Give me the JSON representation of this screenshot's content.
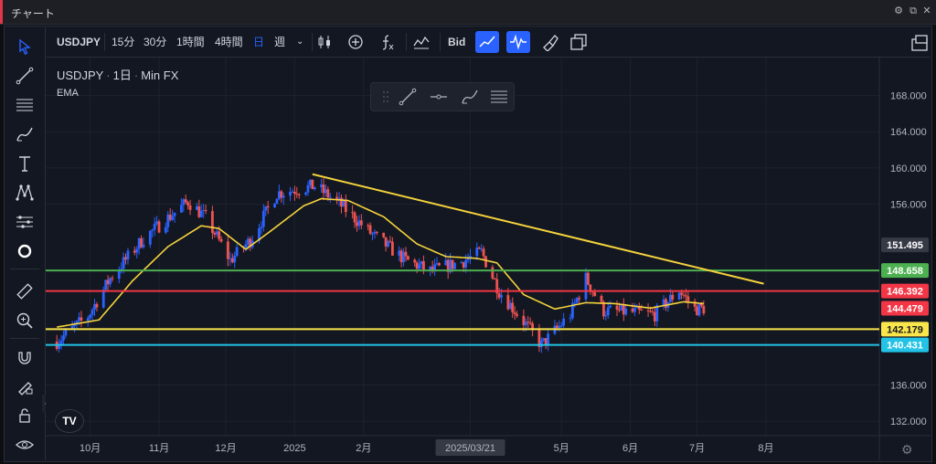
{
  "window": {
    "title": "チャート"
  },
  "toolbar": {
    "symbol": "USDJPY",
    "intervals": [
      "15分",
      "30分",
      "1時間",
      "4時間",
      "日",
      "週"
    ],
    "active_interval": "日",
    "price_type": "Bid"
  },
  "legend": {
    "symbol": "USDJPY",
    "interval": "1日",
    "source": "Min FX",
    "indicator": "EMA"
  },
  "logo": "TV",
  "colors": {
    "background": "#131722",
    "up_candle": "#2962ff",
    "down_candle": "#ef5350",
    "ema": "#f5d33b",
    "trendline": "#f5d33b",
    "green_line": "#4caf50",
    "red_line": "#f23645",
    "yellow_line": "#fae54a",
    "cyan_line": "#22c3e6",
    "accent": "#2962ff"
  },
  "chart_data": {
    "type": "candlestick",
    "symbol": "USDJPY",
    "interval": "1日",
    "y_ticks": [
      168.0,
      164.0,
      160.0,
      156.0,
      136.0,
      132.0
    ],
    "y_tick_labels": [
      "168.000",
      "164.000",
      "160.000",
      "156.000",
      "136.000",
      "132.000"
    ],
    "ylim": [
      130.4,
      172.2
    ],
    "x_labels": [
      "10月",
      "11月",
      "12月",
      "2025",
      "2月",
      "2025/03/21",
      "5月",
      "6月",
      "7月",
      "8月"
    ],
    "x_label_dates": [
      "2024-10-01",
      "2024-11-01",
      "2024-12-01",
      "2025-01-01",
      "2025-02-01",
      "2025-03-21",
      "2025-05-01",
      "2025-06-01",
      "2025-07-01",
      "2025-08-01"
    ],
    "highlighted_x_label": "2025/03/21",
    "xlim": [
      "2024-09-11",
      "2025-09-21"
    ],
    "first_candle_date": "2024-09-16",
    "price_anchors": [
      [
        "2024-09-16",
        140.8
      ],
      [
        "2024-09-30",
        143.6
      ],
      [
        "2024-10-10",
        147.8
      ],
      [
        "2024-10-25",
        152.2
      ],
      [
        "2024-11-14",
        156.3
      ],
      [
        "2024-11-22",
        154.5
      ],
      [
        "2024-12-03",
        149.8
      ],
      [
        "2024-12-12",
        152.0
      ],
      [
        "2024-12-24",
        157.2
      ],
      [
        "2025-01-10",
        158.0
      ],
      [
        "2025-01-20",
        156.3
      ],
      [
        "2025-02-05",
        152.6
      ],
      [
        "2025-02-20",
        149.8
      ],
      [
        "2025-03-03",
        148.6
      ],
      [
        "2025-03-17",
        149.6
      ],
      [
        "2025-03-26",
        150.7
      ],
      [
        "2025-04-03",
        146.4
      ],
      [
        "2025-04-16",
        142.4
      ],
      [
        "2025-04-22",
        140.4
      ],
      [
        "2025-05-05",
        143.8
      ],
      [
        "2025-05-12",
        147.8
      ],
      [
        "2025-05-20",
        144.2
      ],
      [
        "2025-05-30",
        144.1
      ],
      [
        "2025-06-12",
        143.8
      ],
      [
        "2025-06-23",
        146.5
      ],
      [
        "2025-06-30",
        144.4
      ],
      [
        "2025-07-04",
        144.5
      ]
    ],
    "ema_anchors": [
      [
        "2024-09-16",
        142.4
      ],
      [
        "2024-10-05",
        143.2
      ],
      [
        "2024-10-20",
        147.5
      ],
      [
        "2024-11-05",
        151.3
      ],
      [
        "2024-11-20",
        153.6
      ],
      [
        "2024-11-28",
        153.3
      ],
      [
        "2024-12-10",
        151.0
      ],
      [
        "2024-12-20",
        152.8
      ],
      [
        "2025-01-05",
        155.8
      ],
      [
        "2025-01-13",
        156.6
      ],
      [
        "2025-01-25",
        156.4
      ],
      [
        "2025-02-10",
        154.6
      ],
      [
        "2025-02-25",
        151.6
      ],
      [
        "2025-03-10",
        150.2
      ],
      [
        "2025-03-24",
        150.0
      ],
      [
        "2025-04-02",
        149.5
      ],
      [
        "2025-04-14",
        146.0
      ],
      [
        "2025-04-28",
        144.4
      ],
      [
        "2025-05-12",
        145.1
      ],
      [
        "2025-05-25",
        145.0
      ],
      [
        "2025-06-10",
        144.5
      ],
      [
        "2025-06-25",
        145.2
      ],
      [
        "2025-07-04",
        145.0
      ]
    ],
    "trendline": {
      "start": [
        "2025-01-09",
        159.3
      ],
      "end": [
        "2025-07-31",
        147.2
      ]
    },
    "horizontal_lines": [
      {
        "price": 148.658,
        "label": "148.658",
        "color": "#4caf50"
      },
      {
        "price": 146.392,
        "label": "146.392",
        "color": "#f23645"
      },
      {
        "price": 142.179,
        "label": "142.179",
        "color": "#fae54a"
      },
      {
        "price": 140.431,
        "label": "140.431",
        "color": "#22c3e6"
      }
    ],
    "price_labels": [
      {
        "price": 151.495,
        "label": "151.495",
        "color": "#363a45"
      },
      {
        "price": 144.479,
        "label": "144.479",
        "color": "#f23645"
      }
    ]
  }
}
